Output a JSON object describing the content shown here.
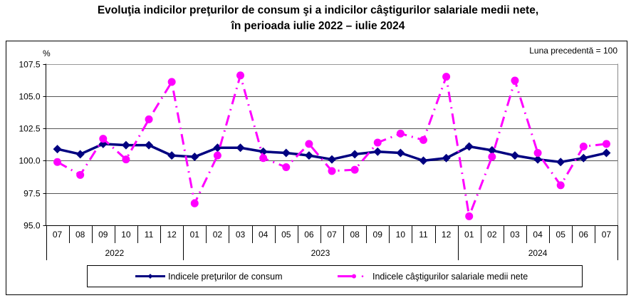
{
  "title_line1": "Evoluţia indicilor preţurilor de consum şi a indicilor câştigurilor salariale medii nete,",
  "title_line2": "în perioada iulie 2022 – iulie 2024",
  "chart_data": {
    "type": "line",
    "title": "Evoluţia indicilor preţurilor de consum şi a indicilor câştigurilor salariale medii nete, în perioada iulie 2022 – iulie 2024",
    "ylabel": "%",
    "note": "Luna precedentă = 100",
    "ylim": [
      95.0,
      107.5
    ],
    "yticks": [
      "95.0",
      "97.5",
      "100.0",
      "102.5",
      "105.0",
      "107.5"
    ],
    "grid": true,
    "categories": [
      "07",
      "08",
      "09",
      "10",
      "11",
      "12",
      "01",
      "02",
      "03",
      "04",
      "05",
      "06",
      "07",
      "08",
      "09",
      "10",
      "11",
      "12",
      "01",
      "02",
      "03",
      "04",
      "05",
      "06",
      "07"
    ],
    "years": [
      {
        "label": "2022",
        "months": 6
      },
      {
        "label": "2023",
        "months": 12
      },
      {
        "label": "2024",
        "months": 7
      }
    ],
    "legend_position": "bottom",
    "series": [
      {
        "name": "Indicele preţurilor de consum",
        "color": "#000080",
        "marker": "diamond",
        "line_style": "solid",
        "values": [
          100.9,
          100.5,
          101.3,
          101.2,
          101.2,
          100.4,
          100.3,
          101.0,
          101.0,
          100.7,
          100.6,
          100.4,
          100.1,
          100.5,
          100.7,
          100.6,
          100.0,
          100.2,
          101.1,
          100.8,
          100.4,
          100.1,
          99.9,
          100.2,
          100.6
        ]
      },
      {
        "name": "Indicele câştigurilor salariale medii nete",
        "color": "#FF00FF",
        "marker": "circle",
        "line_style": "dash-dot",
        "values": [
          99.9,
          98.9,
          101.7,
          100.1,
          103.2,
          106.1,
          96.7,
          100.4,
          106.6,
          100.2,
          99.5,
          101.3,
          99.2,
          99.3,
          101.4,
          102.1,
          101.6,
          106.5,
          95.7,
          100.3,
          106.2,
          100.6,
          98.1,
          101.1,
          101.3
        ]
      }
    ]
  }
}
